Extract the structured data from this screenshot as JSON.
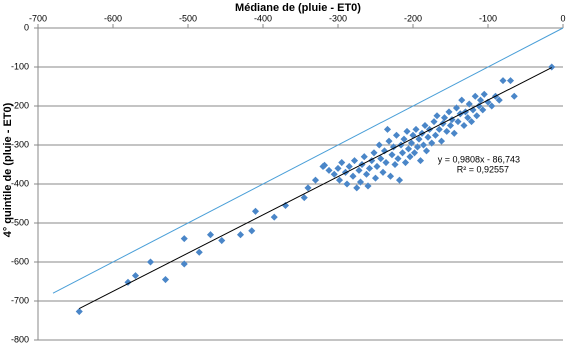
{
  "chart_data": {
    "type": "scatter",
    "title": "Médiane de (pluie - ET0)",
    "y_label": "4° quintile de (pluie - ET0)",
    "xlim": [
      -700,
      0
    ],
    "xticks": [
      -700,
      -600,
      -500,
      -400,
      -300,
      -200,
      -100,
      0
    ],
    "ylim": [
      -800,
      0
    ],
    "yticks": [
      -800,
      -700,
      -600,
      -500,
      -400,
      -300,
      -200,
      -100,
      0
    ],
    "grid": true,
    "color": "#4a86c8",
    "x": [
      -645,
      -580,
      -570,
      -550,
      -530,
      -505,
      -505,
      -485,
      -470,
      -455,
      -430,
      -415,
      -410,
      -385,
      -370,
      -345,
      -340,
      -330,
      -320,
      -318,
      -312,
      -305,
      -300,
      -298,
      -295,
      -290,
      -288,
      -285,
      -280,
      -278,
      -275,
      -272,
      -270,
      -268,
      -265,
      -262,
      -260,
      -258,
      -255,
      -252,
      -250,
      -248,
      -245,
      -243,
      -240,
      -238,
      -236,
      -234,
      -232,
      -230,
      -228,
      -226,
      -224,
      -222,
      -220,
      -218,
      -216,
      -214,
      -212,
      -210,
      -208,
      -206,
      -204,
      -202,
      -200,
      -198,
      -196,
      -194,
      -192,
      -190,
      -188,
      -186,
      -184,
      -182,
      -180,
      -178,
      -175,
      -172,
      -170,
      -168,
      -165,
      -162,
      -160,
      -158,
      -155,
      -152,
      -150,
      -148,
      -145,
      -142,
      -140,
      -137,
      -135,
      -132,
      -130,
      -127,
      -125,
      -122,
      -120,
      -117,
      -115,
      -112,
      -110,
      -107,
      -105,
      -100,
      -95,
      -90,
      -85,
      -80,
      -70,
      -65,
      -15
    ],
    "y": [
      -727,
      -652,
      -635,
      -600,
      -645,
      -540,
      -605,
      -575,
      -530,
      -545,
      -530,
      -520,
      -470,
      -485,
      -455,
      -435,
      -410,
      -390,
      -355,
      -352,
      -365,
      -375,
      -360,
      -390,
      -345,
      -370,
      -400,
      -355,
      -380,
      -340,
      -410,
      -365,
      -395,
      -350,
      -330,
      -375,
      -405,
      -360,
      -340,
      -320,
      -385,
      -355,
      -300,
      -335,
      -370,
      -315,
      -345,
      -260,
      -290,
      -380,
      -325,
      -305,
      -350,
      -275,
      -335,
      -390,
      -300,
      -320,
      -285,
      -345,
      -265,
      -310,
      -330,
      -295,
      -275,
      -320,
      -260,
      -305,
      -285,
      -340,
      -270,
      -300,
      -250,
      -315,
      -280,
      -260,
      -295,
      -240,
      -275,
      -225,
      -260,
      -290,
      -245,
      -230,
      -265,
      -215,
      -250,
      -235,
      -270,
      -205,
      -240,
      -220,
      -185,
      -250,
      -215,
      -230,
      -195,
      -240,
      -210,
      -175,
      -225,
      -200,
      -185,
      -210,
      -170,
      -190,
      -200,
      -175,
      -185,
      -135,
      -135,
      -175,
      -100
    ],
    "trendline": {
      "color": "#000000",
      "slope": 0.9808,
      "intercept": -86.743,
      "x_range": [
        -645,
        -15
      ],
      "equation": "y = 0,9808x - 86,743",
      "r2": "R² = 0,92557"
    },
    "identity_line": {
      "color": "#4a9fd8",
      "x_range": [
        -680,
        0
      ]
    }
  }
}
